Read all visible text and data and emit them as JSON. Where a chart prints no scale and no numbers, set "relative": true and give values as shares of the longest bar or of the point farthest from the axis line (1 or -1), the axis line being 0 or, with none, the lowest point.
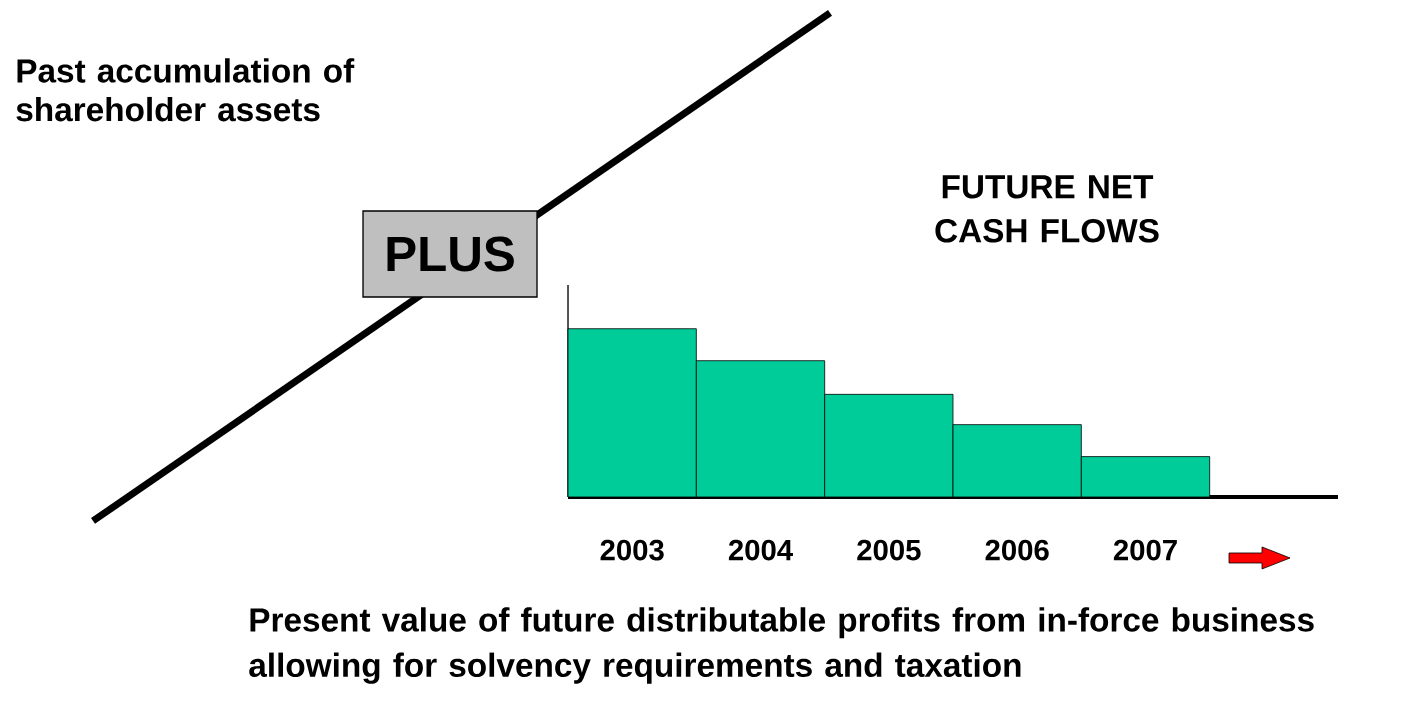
{
  "chart_data": [
    {
      "type": "line",
      "relative": true,
      "title": "Past accumulation of shareholder assets",
      "categories": [
        null,
        null
      ],
      "values": [
        0,
        1
      ],
      "color": "#000000",
      "annotations": [
        "PLUS"
      ]
    },
    {
      "type": "bar",
      "relative": true,
      "title": "FUTURE NET CASH FLOWS",
      "categories": [
        "2003",
        "2004",
        "2005",
        "2006",
        "2007",
        null
      ],
      "values": [
        1,
        0.81,
        0.61,
        0.43,
        0.24,
        null
      ],
      "color": "#00cc99",
      "annotations": [
        "Present value of future distributable profits from in-force business allowing for solvency requirements and taxation"
      ]
    }
  ]
}
